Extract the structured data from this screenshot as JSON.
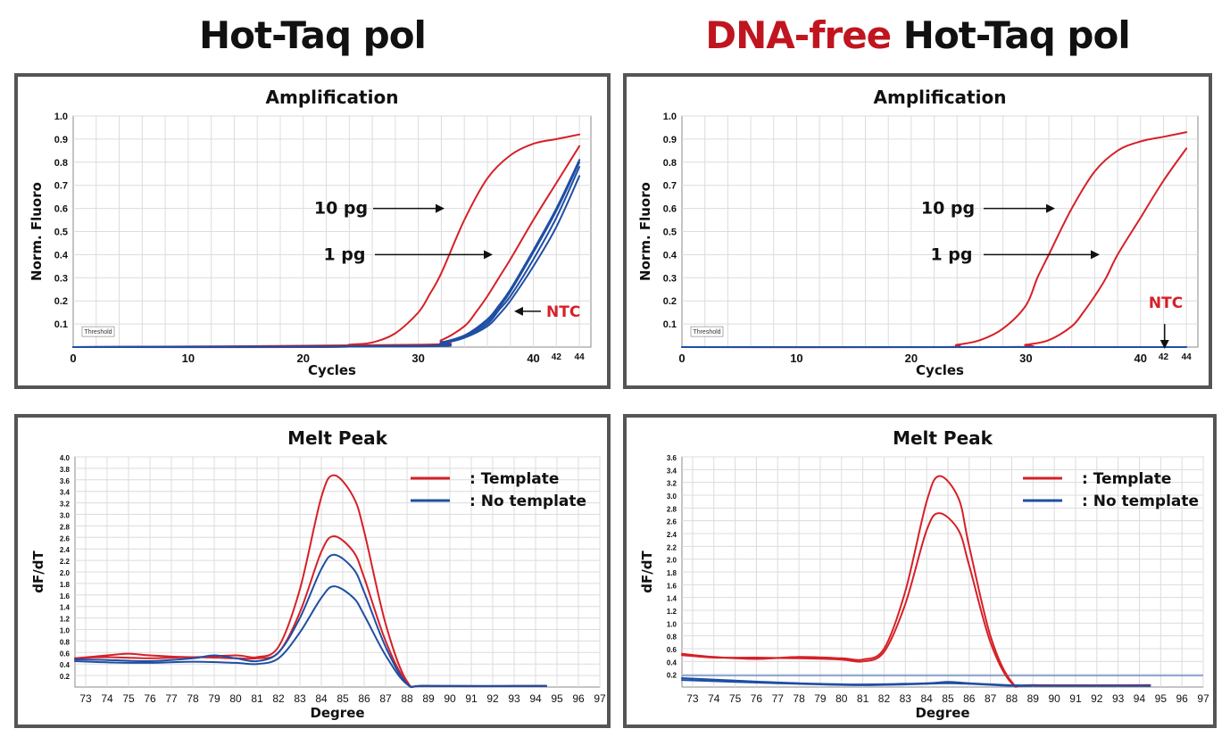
{
  "titles": {
    "left": "Hot-Taq pol",
    "right_highlight": "DNA-free",
    "right_rest": " Hot-Taq pol"
  },
  "colors": {
    "red": "#d62027",
    "blue": "#1f4ea3",
    "highlight": "#c0151f"
  },
  "chart_data": [
    {
      "id": "amp-left",
      "type": "line",
      "title": "Amplification",
      "xlabel": "Cycles",
      "ylabel": "Norm. Fluoro",
      "xlim": [
        0,
        45
      ],
      "ylim": [
        0,
        1.0
      ],
      "xticks": [
        0,
        10,
        20,
        30,
        40,
        42,
        44
      ],
      "yticks": [
        0.1,
        0.2,
        0.3,
        0.4,
        0.5,
        0.6,
        0.7,
        0.8,
        0.9,
        1.0
      ],
      "threshold_label": "Threshold",
      "annotations": [
        "10 pg",
        "1 pg",
        "NTC"
      ],
      "series": [
        {
          "color": "red",
          "x": [
            0,
            22,
            24,
            26,
            28,
            30,
            31,
            32,
            34,
            36,
            38,
            40,
            42,
            44
          ],
          "y": [
            0,
            0,
            0.01,
            0.02,
            0.06,
            0.15,
            0.23,
            0.32,
            0.55,
            0.73,
            0.83,
            0.88,
            0.9,
            0.92
          ]
        },
        {
          "color": "red",
          "x": [
            0,
            30,
            32,
            34,
            35,
            36,
            37,
            38,
            40,
            42,
            44
          ],
          "y": [
            0,
            0.01,
            0.03,
            0.09,
            0.15,
            0.22,
            0.3,
            0.38,
            0.55,
            0.71,
            0.87
          ]
        },
        {
          "color": "blue",
          "x": [
            0,
            30,
            32,
            34,
            36,
            37,
            38,
            40,
            42,
            44
          ],
          "y": [
            0,
            0.005,
            0.02,
            0.05,
            0.12,
            0.18,
            0.25,
            0.42,
            0.6,
            0.81
          ]
        },
        {
          "color": "blue",
          "x": [
            0,
            30,
            32,
            34,
            36,
            37,
            38,
            40,
            42,
            44
          ],
          "y": [
            0,
            0.005,
            0.02,
            0.05,
            0.11,
            0.17,
            0.24,
            0.41,
            0.59,
            0.8
          ]
        },
        {
          "color": "blue",
          "x": [
            0,
            30,
            32,
            34,
            36,
            37,
            38,
            40,
            42,
            44
          ],
          "y": [
            0,
            0.005,
            0.018,
            0.045,
            0.1,
            0.16,
            0.22,
            0.38,
            0.56,
            0.78
          ]
        },
        {
          "color": "blue",
          "x": [
            0,
            30,
            32,
            34,
            36,
            37,
            38,
            40,
            42,
            44
          ],
          "y": [
            0,
            0.003,
            0.015,
            0.04,
            0.09,
            0.14,
            0.2,
            0.35,
            0.52,
            0.74
          ]
        }
      ]
    },
    {
      "id": "amp-right",
      "type": "line",
      "title": "Amplification",
      "xlabel": "Cycles",
      "ylabel": "Norm. Fluoro",
      "xlim": [
        0,
        45
      ],
      "ylim": [
        0,
        1.0
      ],
      "xticks": [
        0,
        10,
        20,
        30,
        40,
        42,
        44
      ],
      "yticks": [
        0.1,
        0.2,
        0.3,
        0.4,
        0.5,
        0.6,
        0.7,
        0.8,
        0.9,
        1.0
      ],
      "threshold_label": "Threshold",
      "annotations": [
        "10 pg",
        "1 pg",
        "NTC"
      ],
      "series": [
        {
          "color": "red",
          "x": [
            0,
            22,
            24,
            26,
            28,
            30,
            31,
            32,
            34,
            36,
            38,
            40,
            42,
            44
          ],
          "y": [
            0,
            0,
            0.01,
            0.03,
            0.08,
            0.18,
            0.3,
            0.4,
            0.6,
            0.76,
            0.85,
            0.89,
            0.91,
            0.93
          ]
        },
        {
          "color": "red",
          "x": [
            0,
            28,
            30,
            32,
            34,
            35,
            36,
            37,
            38,
            40,
            42,
            44
          ],
          "y": [
            0,
            0,
            0.01,
            0.03,
            0.09,
            0.15,
            0.22,
            0.3,
            0.4,
            0.56,
            0.72,
            0.86
          ]
        },
        {
          "color": "blue",
          "x": [
            0,
            44
          ],
          "y": [
            0,
            0
          ]
        }
      ]
    },
    {
      "id": "melt-left",
      "type": "line",
      "title": "Melt Peak",
      "xlabel": "Degree",
      "ylabel": "dF/dT",
      "xlim": [
        72.5,
        97
      ],
      "ylim": [
        0,
        4.0
      ],
      "xticks": [
        73,
        74,
        75,
        76,
        77,
        78,
        79,
        80,
        81,
        82,
        83,
        84,
        85,
        86,
        87,
        88,
        89,
        90,
        91,
        92,
        93,
        94,
        95,
        96,
        97
      ],
      "yticks": [
        0.2,
        0.4,
        0.6,
        0.8,
        1.0,
        1.2,
        1.4,
        1.6,
        1.8,
        2.0,
        2.2,
        2.4,
        2.6,
        2.8,
        3.0,
        3.2,
        3.4,
        3.6,
        3.8,
        4.0
      ],
      "legend": [
        "Template",
        "No template"
      ],
      "series": [
        {
          "name": "Template",
          "color": "red",
          "x": [
            72.5,
            74,
            75,
            76,
            78,
            80,
            81,
            82,
            83,
            84,
            84.6,
            85.5,
            86,
            87,
            88,
            89,
            94.5
          ],
          "y": [
            0.5,
            0.55,
            0.58,
            0.55,
            0.52,
            0.55,
            0.52,
            0.7,
            1.7,
            3.3,
            3.68,
            3.3,
            2.7,
            1.1,
            0.1,
            0.02,
            0.02
          ]
        },
        {
          "name": "Template",
          "color": "red",
          "x": [
            72.5,
            74,
            76,
            78,
            80,
            81,
            82,
            83,
            84,
            84.6,
            85.5,
            86,
            87,
            88,
            89,
            94.5
          ],
          "y": [
            0.5,
            0.52,
            0.5,
            0.52,
            0.5,
            0.5,
            0.6,
            1.3,
            2.35,
            2.62,
            2.35,
            1.9,
            0.8,
            0.08,
            0.02,
            0.02
          ]
        },
        {
          "name": "No template",
          "color": "blue",
          "x": [
            72.5,
            74,
            76,
            78,
            79,
            80,
            81,
            82,
            83,
            84,
            84.6,
            85.5,
            86,
            87,
            88,
            89,
            94.5
          ],
          "y": [
            0.48,
            0.47,
            0.45,
            0.5,
            0.55,
            0.5,
            0.45,
            0.6,
            1.2,
            2.05,
            2.3,
            2.05,
            1.65,
            0.7,
            0.06,
            0.02,
            0.02
          ]
        },
        {
          "name": "No template",
          "color": "blue",
          "x": [
            72.5,
            74,
            76,
            78,
            80,
            81,
            82,
            83,
            84,
            84.6,
            85.5,
            86,
            87,
            88,
            89,
            94.5
          ],
          "y": [
            0.45,
            0.43,
            0.42,
            0.44,
            0.42,
            0.4,
            0.5,
            0.95,
            1.55,
            1.75,
            1.55,
            1.25,
            0.55,
            0.05,
            0.02,
            0.02
          ]
        }
      ]
    },
    {
      "id": "melt-right",
      "type": "line",
      "title": "Melt Peak",
      "xlabel": "Degree",
      "ylabel": "dF/dT",
      "xlim": [
        72.5,
        97
      ],
      "ylim": [
        0,
        3.6
      ],
      "xticks": [
        73,
        74,
        75,
        76,
        77,
        78,
        79,
        80,
        81,
        82,
        83,
        84,
        85,
        86,
        87,
        88,
        89,
        90,
        91,
        92,
        93,
        94,
        95,
        96,
        97
      ],
      "yticks": [
        0.2,
        0.4,
        0.6,
        0.8,
        1.0,
        1.2,
        1.4,
        1.6,
        1.8,
        2.0,
        2.2,
        2.4,
        2.6,
        2.8,
        3.0,
        3.2,
        3.4,
        3.6
      ],
      "legend": [
        "Template",
        "No template"
      ],
      "series": [
        {
          "name": "Template",
          "color": "red",
          "x": [
            72.5,
            74,
            76,
            78,
            80,
            81,
            82,
            83,
            84,
            84.6,
            85.5,
            86,
            87,
            88,
            89,
            94.5
          ],
          "y": [
            0.52,
            0.47,
            0.44,
            0.47,
            0.45,
            0.43,
            0.6,
            1.5,
            2.9,
            3.3,
            2.95,
            2.2,
            0.8,
            0.08,
            0.03,
            0.03
          ]
        },
        {
          "name": "Template",
          "color": "red",
          "x": [
            72.5,
            74,
            76,
            78,
            80,
            81,
            82,
            83,
            84,
            84.6,
            85.5,
            86,
            87,
            88,
            89,
            94.5
          ],
          "y": [
            0.5,
            0.46,
            0.46,
            0.45,
            0.43,
            0.4,
            0.55,
            1.3,
            2.45,
            2.72,
            2.45,
            1.9,
            0.7,
            0.06,
            0.03,
            0.03
          ]
        },
        {
          "name": "No template",
          "color": "blue",
          "x": [
            72.5,
            75,
            78,
            81,
            84,
            85,
            86,
            88,
            90,
            94.5
          ],
          "y": [
            0.14,
            0.1,
            0.06,
            0.04,
            0.06,
            0.08,
            0.06,
            0.03,
            0.02,
            0.02
          ]
        },
        {
          "name": "No template",
          "color": "blue",
          "x": [
            72.5,
            75,
            78,
            81,
            84,
            85,
            86,
            88,
            90,
            94.5
          ],
          "y": [
            0.11,
            0.08,
            0.05,
            0.03,
            0.05,
            0.06,
            0.05,
            0.02,
            0.02,
            0.02
          ]
        }
      ]
    }
  ]
}
